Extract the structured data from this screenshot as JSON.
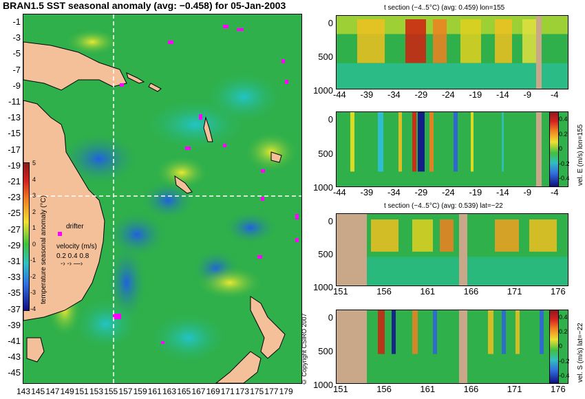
{
  "title": "BRAN1.5 SST seasonal anomaly (avg: −0.458) for 05-Jan-2003",
  "map": {
    "lat_ticks": [
      "-1",
      "-3",
      "-5",
      "-7",
      "-9",
      "-11",
      "-13",
      "-15",
      "-17",
      "-19",
      "-21",
      "-23",
      "-25",
      "-27",
      "-29",
      "-31",
      "-33",
      "-35",
      "-37",
      "-39",
      "-41",
      "-43",
      "-45"
    ],
    "lon_ticks": [
      "143",
      "145",
      "147",
      "149",
      "151",
      "153",
      "155",
      "157",
      "159",
      "161",
      "163",
      "165",
      "167",
      "169",
      "171",
      "173",
      "175",
      "177",
      "179"
    ],
    "colorbar_label": "temperature seasonal anomaly (°C)",
    "colorbar_ticks": [
      "5",
      "4",
      "3",
      "2",
      "1",
      "0",
      "-1",
      "-2",
      "-3",
      "-4"
    ],
    "drifter_label": "drifter",
    "velocity_label": "velocity (m/s)",
    "velocity_values": "0.2 0.4 0.8",
    "copyright": "© Copyright CSIRO 2007"
  },
  "sections": [
    {
      "title": "t section (−4..5°C) (avg: 0.459) lon=155",
      "y_ticks": [
        "0",
        "500",
        "1000"
      ],
      "x_ticks": [
        "-44",
        "-39",
        "-34",
        "-29",
        "-24",
        "-19",
        "-14",
        "-9",
        "-4"
      ],
      "side_label": ""
    },
    {
      "title": "",
      "y_ticks": [
        "0",
        "500",
        "1000"
      ],
      "x_ticks": [
        "-44",
        "-39",
        "-34",
        "-29",
        "-24",
        "-19",
        "-14",
        "-9",
        "-4"
      ],
      "side_label": "vel. E (m/s) lon=155",
      "cbar_ticks": [
        "0.4",
        "0.2",
        "0",
        "-0.2",
        "-0.4"
      ]
    },
    {
      "title": "t section (−4..5°C) (avg: 0.539) lat=−22",
      "y_ticks": [
        "0",
        "500",
        "1000"
      ],
      "x_ticks": [
        "151",
        "156",
        "161",
        "166",
        "171",
        "176"
      ],
      "side_label": ""
    },
    {
      "title": "",
      "y_ticks": [
        "0",
        "500",
        "1000"
      ],
      "x_ticks": [
        "151",
        "156",
        "161",
        "166",
        "171",
        "176"
      ],
      "side_label": "vel. S (m/s) lat=−22",
      "cbar_ticks": [
        "0.4",
        "0.2",
        "0",
        "-0.2",
        "-0.4"
      ]
    }
  ],
  "colors": {
    "ocean_mean": "#2fb04a",
    "land": "#f4c09a",
    "section_land": "#c8a888",
    "drifter": "#ff00ff"
  }
}
